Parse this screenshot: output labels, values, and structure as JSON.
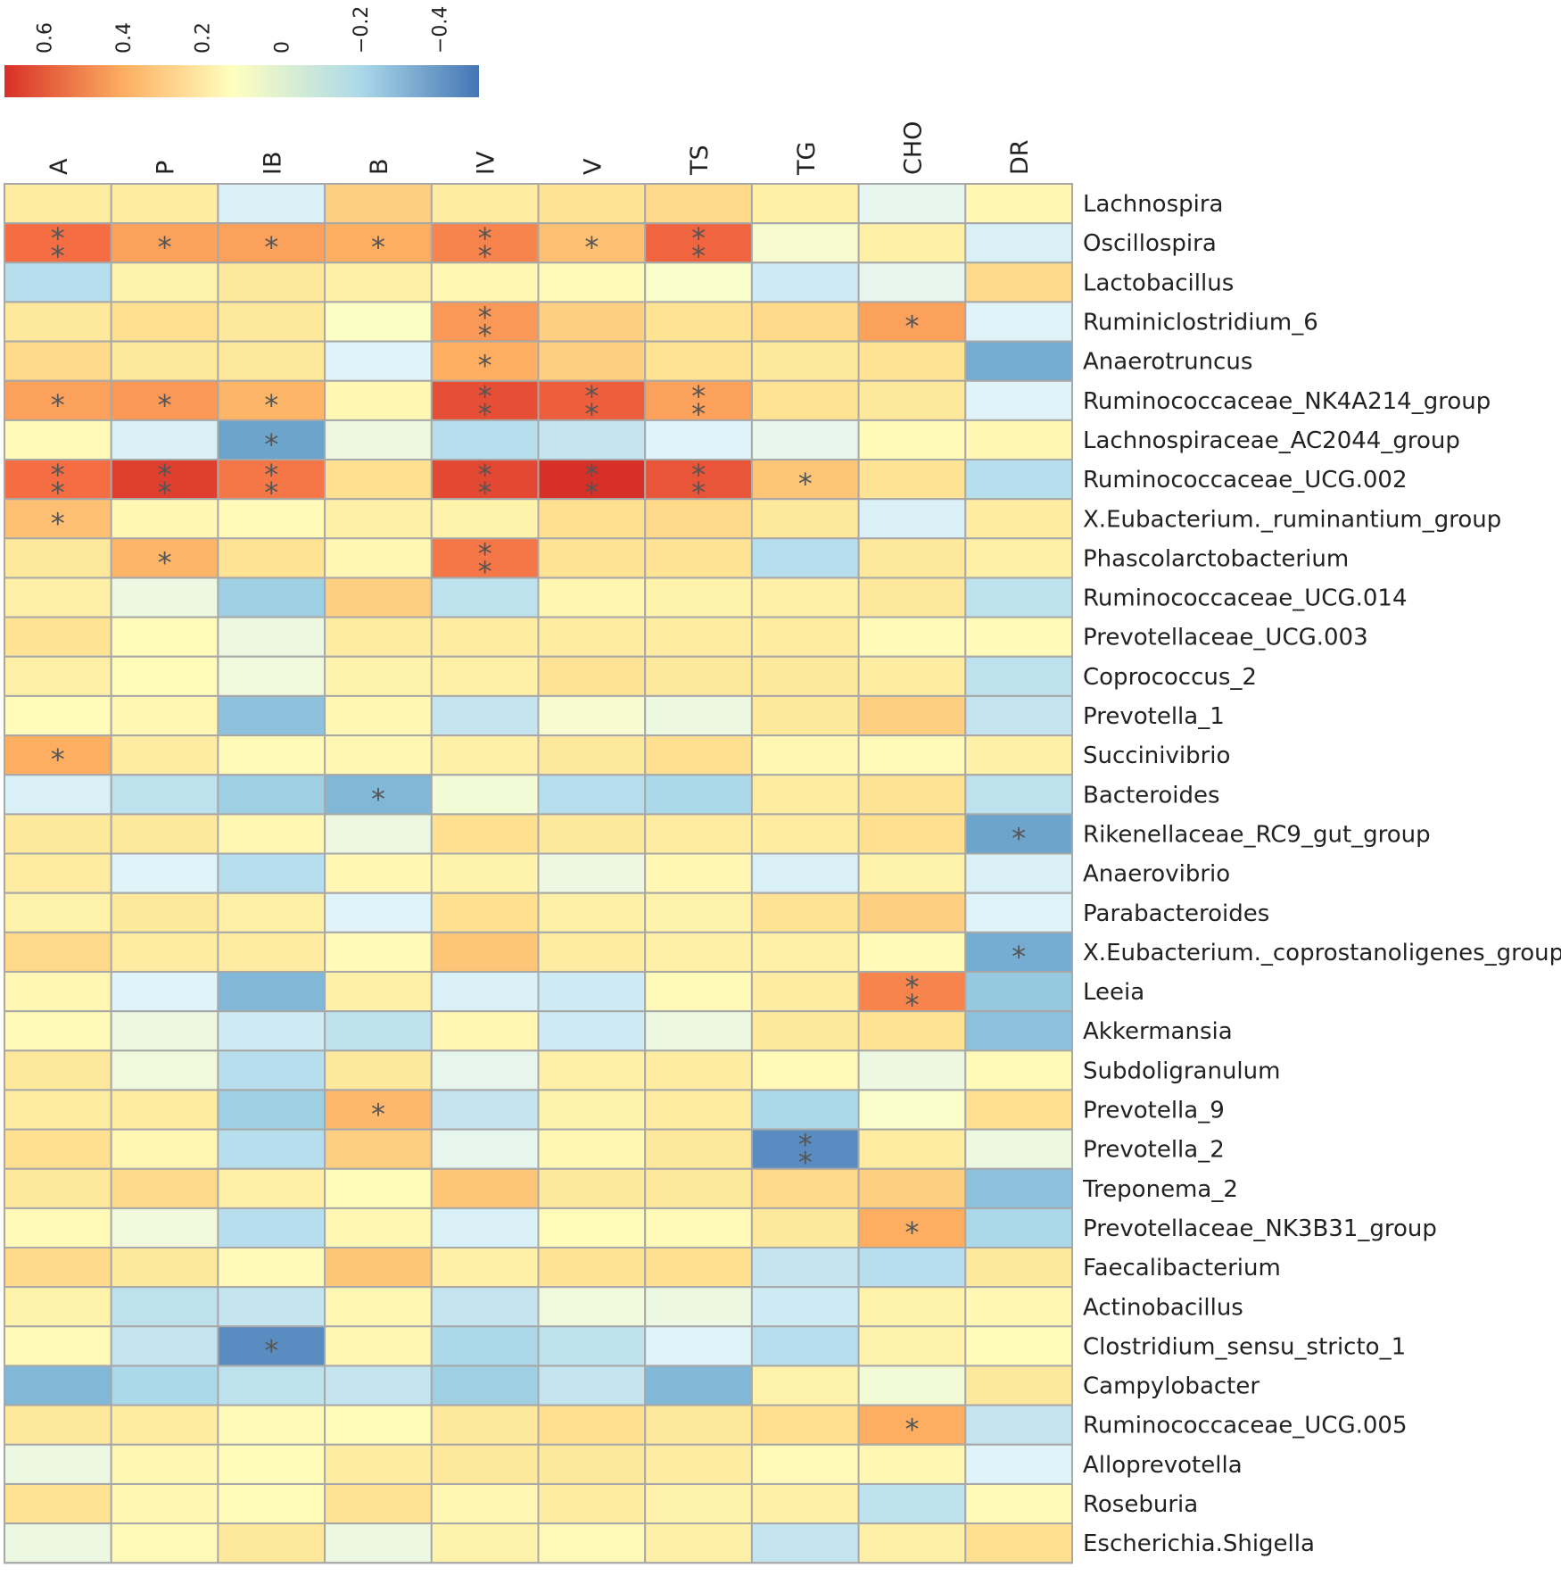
{
  "chart_data": {
    "type": "heatmap",
    "colorbar": {
      "ticks": [
        "0.6",
        "0.4",
        "0.2",
        "0",
        "−0.2",
        "−0.4"
      ],
      "tick_values": [
        0.6,
        0.4,
        0.2,
        0,
        -0.2,
        -0.4
      ],
      "range": [
        0.7,
        -0.5
      ],
      "low_color": "#4575b4",
      "mid_color": "#ffffbf",
      "high_color": "#d73027"
    },
    "columns": [
      "A",
      "P",
      "IB",
      "B",
      "IV",
      "V",
      "TS",
      "TG",
      "CHO",
      "DR"
    ],
    "rows": [
      {
        "name": "Lachnospira",
        "values": [
          0.12,
          0.12,
          -0.12,
          0.25,
          0.12,
          0.18,
          0.22,
          0.1,
          -0.08,
          0.05
        ],
        "sig": [
          "",
          "",
          "",
          "",
          "",
          "",
          "",
          "",
          "",
          ""
        ]
      },
      {
        "name": "Oscillospira",
        "values": [
          0.5,
          0.38,
          0.38,
          0.35,
          0.45,
          0.3,
          0.53,
          -0.03,
          0.1,
          -0.12
        ],
        "sig": [
          "**",
          "*",
          "*",
          "*",
          "**",
          "*",
          "**",
          "",
          "",
          ""
        ]
      },
      {
        "name": "Lactobacillus",
        "values": [
          -0.22,
          0.08,
          0.15,
          0.1,
          0.05,
          0.03,
          -0.02,
          -0.15,
          -0.08,
          0.22
        ]
      },
      {
        "name": "Ruminiclostridium_6",
        "values": [
          0.15,
          0.2,
          0.15,
          -0.01,
          0.4,
          0.25,
          0.18,
          0.22,
          0.38,
          -0.1
        ],
        "sig": [
          "",
          "",
          "",
          "",
          "**",
          "",
          "",
          "",
          "*",
          ""
        ]
      },
      {
        "name": "Anaerotruncus",
        "values": [
          0.22,
          0.15,
          0.15,
          -0.1,
          0.35,
          0.25,
          0.18,
          0.15,
          0.18,
          -0.38
        ],
        "sig": [
          "",
          "",
          "",
          "",
          "*",
          "",
          "",
          "",
          "",
          ""
        ]
      },
      {
        "name": "Ruminococcaceae_NK4A214_group",
        "values": [
          0.38,
          0.4,
          0.33,
          0.05,
          0.6,
          0.55,
          0.38,
          0.18,
          0.15,
          -0.1
        ],
        "sig": [
          "*",
          "*",
          "*",
          "",
          "**",
          "**",
          "**",
          "",
          "",
          ""
        ]
      },
      {
        "name": "Lachnospiraceae_AC2044_group",
        "values": [
          0.03,
          -0.12,
          -0.4,
          -0.06,
          -0.22,
          -0.18,
          -0.1,
          -0.08,
          0.03,
          0.05
        ],
        "sig": [
          "",
          "",
          "*",
          "",
          "",
          "",
          "",
          "",
          "",
          ""
        ]
      },
      {
        "name": "Ruminococcaceae_UCG.002",
        "values": [
          0.5,
          0.65,
          0.48,
          0.2,
          0.62,
          0.7,
          0.58,
          0.28,
          0.18,
          -0.22
        ],
        "sig": [
          "**",
          "**",
          "**",
          "",
          "**",
          "**",
          "**",
          "*",
          "",
          ""
        ]
      },
      {
        "name": "X.Eubacterium._ruminantium_group",
        "values": [
          0.3,
          0.05,
          0.03,
          0.1,
          0.08,
          0.2,
          0.22,
          0.15,
          -0.12,
          0.12
        ],
        "sig": [
          "*",
          "",
          "",
          "",
          "",
          "",
          "",
          "",
          "",
          ""
        ]
      },
      {
        "name": "Phascolarctobacterium",
        "values": [
          0.15,
          0.33,
          0.18,
          0.05,
          0.48,
          0.18,
          0.18,
          -0.22,
          0.15,
          0.1
        ],
        "sig": [
          "",
          "*",
          "",
          "",
          "**",
          "",
          "",
          "",
          "",
          ""
        ]
      },
      {
        "name": "Ruminococcaceae_UCG.014",
        "values": [
          0.1,
          -0.06,
          -0.28,
          0.25,
          -0.2,
          0.06,
          0.08,
          0.1,
          0.15,
          -0.2
        ],
        "sig": [
          "",
          "",
          "",
          "",
          "",
          "",
          "",
          "",
          "",
          ""
        ]
      },
      {
        "name": "Prevotellaceae_UCG.003",
        "values": [
          0.18,
          0.02,
          -0.06,
          0.12,
          0.12,
          0.12,
          0.12,
          0.12,
          0.03,
          0.03
        ]
      },
      {
        "name": "Coprococcus_2",
        "values": [
          0.1,
          0.02,
          -0.05,
          0.08,
          0.1,
          0.18,
          0.15,
          0.15,
          0.12,
          -0.2
        ]
      },
      {
        "name": "Prevotella_1",
        "values": [
          0.02,
          0.05,
          -0.32,
          0.05,
          -0.18,
          -0.03,
          -0.06,
          0.15,
          0.25,
          -0.18
        ]
      },
      {
        "name": "Succinivibrio",
        "values": [
          0.35,
          0.12,
          0.03,
          0.05,
          0.1,
          0.15,
          0.2,
          0.05,
          0.03,
          0.1
        ],
        "sig": [
          "*",
          "",
          "",
          "",
          "",
          "",
          "",
          "",
          "",
          ""
        ]
      },
      {
        "name": "Bacteroides",
        "values": [
          -0.12,
          -0.2,
          -0.28,
          -0.35,
          -0.04,
          -0.22,
          -0.25,
          0.12,
          0.18,
          -0.2
        ],
        "sig": [
          "",
          "",
          "",
          "*",
          "",
          "",
          "",
          "",
          "",
          ""
        ]
      },
      {
        "name": "Rikenellaceae_RC9_gut_group",
        "values": [
          0.15,
          0.15,
          0.05,
          -0.06,
          0.2,
          0.15,
          0.12,
          0.12,
          0.2,
          -0.4
        ],
        "sig": [
          "",
          "",
          "",
          "",
          "",
          "",
          "",
          "",
          "",
          "*"
        ]
      },
      {
        "name": "Anaerovibrio",
        "values": [
          0.12,
          -0.1,
          -0.22,
          0.05,
          0.08,
          -0.06,
          0.05,
          -0.12,
          0.08,
          -0.12
        ]
      },
      {
        "name": "Parabacteroides",
        "values": [
          0.08,
          0.15,
          0.1,
          -0.1,
          0.2,
          0.1,
          0.08,
          0.18,
          0.25,
          -0.1
        ]
      },
      {
        "name": "X.Eubacterium._coprostanoligenes_group",
        "values": [
          0.22,
          0.12,
          0.12,
          0.03,
          0.28,
          0.12,
          0.1,
          0.1,
          0.03,
          -0.38
        ],
        "sig": [
          "",
          "",
          "",
          "",
          "",
          "",
          "",
          "",
          "",
          "*"
        ]
      },
      {
        "name": "Leeia",
        "values": [
          0.05,
          -0.1,
          -0.35,
          0.1,
          -0.12,
          -0.15,
          0.03,
          0.12,
          0.45,
          -0.3
        ],
        "sig": [
          "",
          "",
          "",
          "",
          "",
          "",
          "",
          "",
          "**",
          ""
        ]
      },
      {
        "name": "Akkermansia",
        "values": [
          0.03,
          -0.06,
          -0.15,
          -0.2,
          0.05,
          -0.15,
          -0.06,
          0.15,
          0.18,
          -0.32
        ]
      },
      {
        "name": "Subdoligranulum",
        "values": [
          0.15,
          -0.05,
          -0.22,
          0.15,
          -0.08,
          0.1,
          0.12,
          0.03,
          -0.06,
          0.03
        ]
      },
      {
        "name": "Prevotella_9",
        "values": [
          0.12,
          0.12,
          -0.28,
          0.32,
          -0.18,
          0.08,
          0.12,
          -0.25,
          -0.02,
          0.2
        ],
        "sig": [
          "",
          "",
          "",
          "*",
          "",
          "",
          "",
          "",
          "",
          ""
        ]
      },
      {
        "name": "Prevotella_2",
        "values": [
          0.2,
          0.05,
          -0.22,
          0.25,
          -0.08,
          0.05,
          0.15,
          -0.45,
          0.12,
          -0.06
        ],
        "sig": [
          "",
          "",
          "",
          "",
          "",
          "",
          "",
          "**",
          "",
          ""
        ]
      },
      {
        "name": "Treponema_2",
        "values": [
          0.15,
          0.22,
          0.1,
          0.02,
          0.28,
          0.15,
          0.15,
          0.22,
          0.25,
          -0.32
        ]
      },
      {
        "name": "Prevotellaceae_NK3B31_group",
        "values": [
          0.03,
          -0.05,
          -0.22,
          0.05,
          -0.12,
          0.02,
          0.03,
          0.15,
          0.35,
          -0.25
        ],
        "sig": [
          "",
          "",
          "",
          "",
          "",
          "",
          "",
          "",
          "*",
          ""
        ]
      },
      {
        "name": "Faecalibacterium",
        "values": [
          0.22,
          0.15,
          0.03,
          0.28,
          0.1,
          0.18,
          0.2,
          -0.18,
          -0.22,
          0.15
        ]
      },
      {
        "name": "Actinobacillus",
        "values": [
          0.08,
          -0.2,
          -0.18,
          0.05,
          -0.18,
          -0.05,
          -0.06,
          -0.15,
          0.08,
          0.05
        ]
      },
      {
        "name": "Clostridium_sensu_stricto_1",
        "values": [
          0.03,
          -0.18,
          -0.45,
          0.05,
          -0.25,
          -0.2,
          -0.1,
          -0.22,
          0.08,
          0.02
        ],
        "sig": [
          "",
          "",
          "*",
          "",
          "",
          "",
          "",
          "",
          "",
          ""
        ]
      },
      {
        "name": "Campylobacter",
        "values": [
          -0.35,
          -0.25,
          -0.2,
          -0.18,
          -0.28,
          -0.18,
          -0.35,
          0.08,
          -0.04,
          0.15
        ]
      },
      {
        "name": "Ruminococcaceae_UCG.005",
        "values": [
          0.15,
          0.12,
          0.03,
          0.02,
          0.15,
          0.2,
          0.15,
          0.2,
          0.35,
          -0.18
        ],
        "sig": [
          "",
          "",
          "",
          "",
          "",
          "",
          "",
          "",
          "*",
          ""
        ]
      },
      {
        "name": "Alloprevotella",
        "values": [
          -0.06,
          0.05,
          0.02,
          0.12,
          0.15,
          0.15,
          0.12,
          0.03,
          0.05,
          -0.1
        ]
      },
      {
        "name": "Roseburia",
        "values": [
          0.18,
          0.05,
          0.02,
          0.18,
          0.05,
          0.12,
          0.08,
          0.1,
          -0.2,
          0.03
        ]
      },
      {
        "name": "Escherichia.Shigella",
        "values": [
          -0.06,
          0.03,
          0.15,
          -0.06,
          0.08,
          0.03,
          0.1,
          -0.18,
          0.1,
          0.2
        ]
      }
    ]
  }
}
